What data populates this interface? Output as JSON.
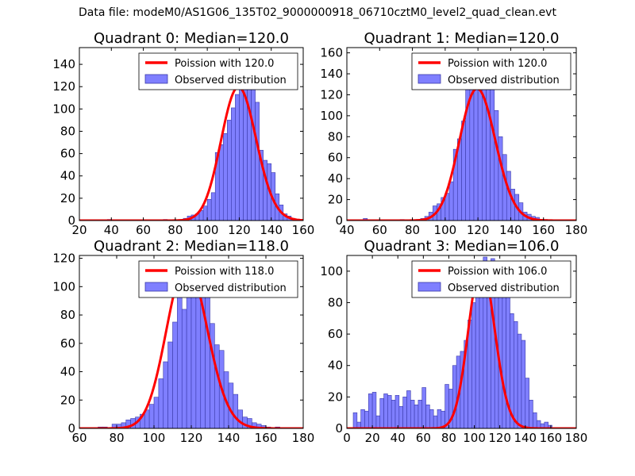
{
  "figure": {
    "suptitle": "Data file: modeM0/AS1G06_135T02_9000000918_06710cztM0_level2_quad_clean.evt",
    "colors": {
      "bar_fill": "#7f7fff",
      "bar_edge": "#3a3aa8",
      "line": "#ff0000"
    }
  },
  "chart_data": [
    {
      "type": "bar",
      "title": "Quadrant 0: Median=120.0",
      "xlim": [
        20,
        160
      ],
      "ylim": [
        0,
        155
      ],
      "xticks": [
        20,
        40,
        60,
        80,
        100,
        120,
        140,
        160
      ],
      "yticks": [
        0,
        20,
        40,
        60,
        80,
        100,
        120,
        140
      ],
      "legend": {
        "position": "top-right",
        "line_label": "Poission with 120.0",
        "bar_label": "Observed distribution"
      },
      "bin_width": 2.5,
      "bins": [
        [
          37.5,
          1
        ],
        [
          72.5,
          1
        ],
        [
          85,
          2
        ],
        [
          87.5,
          4
        ],
        [
          90,
          5
        ],
        [
          92.5,
          6
        ],
        [
          95,
          9
        ],
        [
          97.5,
          13
        ],
        [
          100,
          19
        ],
        [
          102.5,
          25
        ],
        [
          105,
          61
        ],
        [
          107.5,
          68
        ],
        [
          110,
          78
        ],
        [
          112.5,
          90
        ],
        [
          115,
          101
        ],
        [
          117.5,
          113
        ],
        [
          120,
          124
        ],
        [
          122.5,
          138
        ],
        [
          125,
          145
        ],
        [
          127.5,
          122
        ],
        [
          130,
          106
        ],
        [
          132.5,
          63
        ],
        [
          135,
          54
        ],
        [
          137.5,
          51
        ],
        [
          140,
          43
        ],
        [
          142.5,
          24
        ],
        [
          145,
          14
        ],
        [
          147.5,
          6
        ],
        [
          150,
          4
        ],
        [
          152.5,
          2
        ],
        [
          155,
          1
        ]
      ],
      "poisson_mu": 120.0,
      "poisson_scale": 3288
    },
    {
      "type": "bar",
      "title": "Quadrant 1: Median=120.0",
      "xlim": [
        40,
        180
      ],
      "ylim": [
        0,
        165
      ],
      "xticks": [
        40,
        60,
        80,
        100,
        120,
        140,
        160,
        180
      ],
      "yticks": [
        0,
        20,
        40,
        60,
        80,
        100,
        120,
        140,
        160
      ],
      "legend": {
        "position": "top-right",
        "line_label": "Poission with 120.0",
        "bar_label": "Observed distribution"
      },
      "bin_width": 2.5,
      "bins": [
        [
          50,
          2
        ],
        [
          72.5,
          1
        ],
        [
          85,
          2
        ],
        [
          87.5,
          4
        ],
        [
          90,
          8
        ],
        [
          92.5,
          14
        ],
        [
          95,
          16
        ],
        [
          97.5,
          22
        ],
        [
          100,
          26
        ],
        [
          102.5,
          37
        ],
        [
          105,
          68
        ],
        [
          107.5,
          78
        ],
        [
          110,
          95
        ],
        [
          112.5,
          125
        ],
        [
          115,
          140
        ],
        [
          117.5,
          155
        ],
        [
          120,
          147
        ],
        [
          122.5,
          155
        ],
        [
          125,
          144
        ],
        [
          127.5,
          140
        ],
        [
          130,
          105
        ],
        [
          132.5,
          80
        ],
        [
          135,
          63
        ],
        [
          137.5,
          47
        ],
        [
          140,
          30
        ],
        [
          142.5,
          25
        ],
        [
          145,
          17
        ],
        [
          147.5,
          8
        ],
        [
          150,
          6
        ],
        [
          152.5,
          4
        ],
        [
          155,
          3
        ],
        [
          160,
          1
        ]
      ],
      "poisson_mu": 120.0,
      "poisson_scale": 3460
    },
    {
      "type": "bar",
      "title": "Quadrant 2: Median=118.0",
      "xlim": [
        60,
        180
      ],
      "ylim": [
        0,
        122
      ],
      "xticks": [
        60,
        80,
        100,
        120,
        140,
        160,
        180
      ],
      "yticks": [
        0,
        20,
        40,
        60,
        80,
        100,
        120
      ],
      "legend": {
        "position": "top-right",
        "line_label": "Poission with 118.0",
        "bar_label": "Observed distribution"
      },
      "bin_width": 2.5,
      "bins": [
        [
          70,
          1
        ],
        [
          72.5,
          1
        ],
        [
          77.5,
          3
        ],
        [
          80,
          3
        ],
        [
          82.5,
          4
        ],
        [
          85,
          6
        ],
        [
          87.5,
          7
        ],
        [
          90,
          8
        ],
        [
          92.5,
          10
        ],
        [
          95,
          13
        ],
        [
          97.5,
          17
        ],
        [
          100,
          22
        ],
        [
          102.5,
          35
        ],
        [
          105,
          47
        ],
        [
          107.5,
          61
        ],
        [
          110,
          75
        ],
        [
          112.5,
          96
        ],
        [
          115,
          84
        ],
        [
          117.5,
          101
        ],
        [
          120,
          94
        ],
        [
          122.5,
          104
        ],
        [
          125,
          115
        ],
        [
          127.5,
          96
        ],
        [
          130,
          74
        ],
        [
          132.5,
          59
        ],
        [
          135,
          55
        ],
        [
          137.5,
          40
        ],
        [
          140,
          32
        ],
        [
          142.5,
          24
        ],
        [
          145,
          13
        ],
        [
          147.5,
          8
        ],
        [
          150,
          7
        ],
        [
          152.5,
          4
        ],
        [
          155,
          3
        ],
        [
          157.5,
          2
        ],
        [
          160,
          1
        ],
        [
          165,
          1
        ]
      ],
      "poisson_mu": 118.0,
      "poisson_scale": 3162
    },
    {
      "type": "bar",
      "title": "Quadrant 3: Median=106.0",
      "xlim": [
        0,
        180
      ],
      "ylim": [
        0,
        110
      ],
      "xticks": [
        0,
        20,
        40,
        60,
        80,
        100,
        120,
        140,
        160,
        180
      ],
      "yticks": [
        0,
        20,
        40,
        60,
        80,
        100
      ],
      "legend": {
        "position": "top-right",
        "line_label": "Poission with 106.0",
        "bar_label": "Observed distribution"
      },
      "bin_width": 3.0,
      "bins": [
        [
          5,
          10
        ],
        [
          8,
          4
        ],
        [
          11,
          12
        ],
        [
          14,
          11
        ],
        [
          17,
          22
        ],
        [
          20,
          23
        ],
        [
          23,
          8
        ],
        [
          26,
          19
        ],
        [
          29,
          22
        ],
        [
          32,
          21
        ],
        [
          35,
          18
        ],
        [
          38,
          21
        ],
        [
          41,
          14
        ],
        [
          44,
          20
        ],
        [
          47,
          24
        ],
        [
          50,
          18
        ],
        [
          53,
          15
        ],
        [
          56,
          18
        ],
        [
          59,
          26
        ],
        [
          62,
          15
        ],
        [
          65,
          12
        ],
        [
          68,
          8
        ],
        [
          71,
          12
        ],
        [
          74,
          11
        ],
        [
          77,
          28
        ],
        [
          80,
          25
        ],
        [
          83,
          40
        ],
        [
          86,
          46
        ],
        [
          89,
          49
        ],
        [
          92,
          56
        ],
        [
          95,
          69
        ],
        [
          98,
          80
        ],
        [
          101,
          95
        ],
        [
          104,
          100
        ],
        [
          107,
          109
        ],
        [
          110,
          96
        ],
        [
          113,
          108
        ],
        [
          116,
          100
        ],
        [
          119,
          103
        ],
        [
          122,
          91
        ],
        [
          125,
          89
        ],
        [
          128,
          73
        ],
        [
          131,
          68
        ],
        [
          134,
          60
        ],
        [
          137,
          56
        ],
        [
          140,
          32
        ],
        [
          143,
          18
        ],
        [
          146,
          10
        ],
        [
          149,
          5
        ],
        [
          152,
          3
        ],
        [
          155,
          4
        ],
        [
          158,
          2
        ]
      ],
      "poisson_mu": 106.0,
      "poisson_scale": 2690
    }
  ]
}
